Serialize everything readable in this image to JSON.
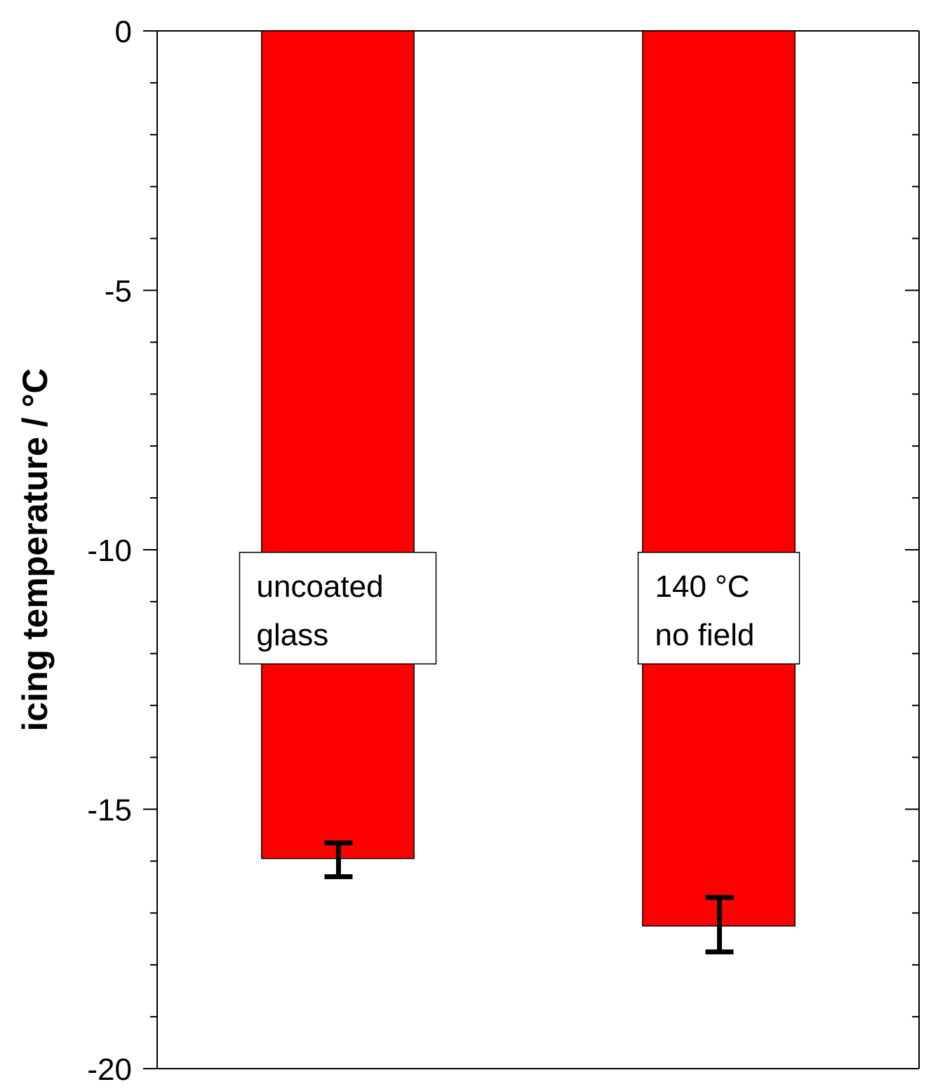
{
  "chart_data": {
    "type": "bar",
    "title": "",
    "xlabel": "",
    "ylabel": "icing temperature / °C",
    "ylim": [
      -20,
      0
    ],
    "yticks": [
      0,
      -5,
      -10,
      -15,
      -20
    ],
    "ytick_labels": [
      "0",
      "-5",
      "-10",
      "-15",
      "-20"
    ],
    "minor_tick_step": 1,
    "categories": [
      "uncoated glass",
      "140 °C no field"
    ],
    "values": [
      -15.95,
      -17.25
    ],
    "errors": [
      {
        "low": -16.3,
        "high": -15.65
      },
      {
        "low": -17.75,
        "high": -16.7
      }
    ],
    "bar_labels": [
      [
        "uncoated",
        "glass"
      ],
      [
        "140 °C",
        "no field"
      ]
    ],
    "label_box_value_range": [
      -10.05,
      -12.2
    ],
    "bar_color": "#ff0000",
    "errorbar_color": "#000000",
    "grid": false,
    "legend": "none"
  }
}
